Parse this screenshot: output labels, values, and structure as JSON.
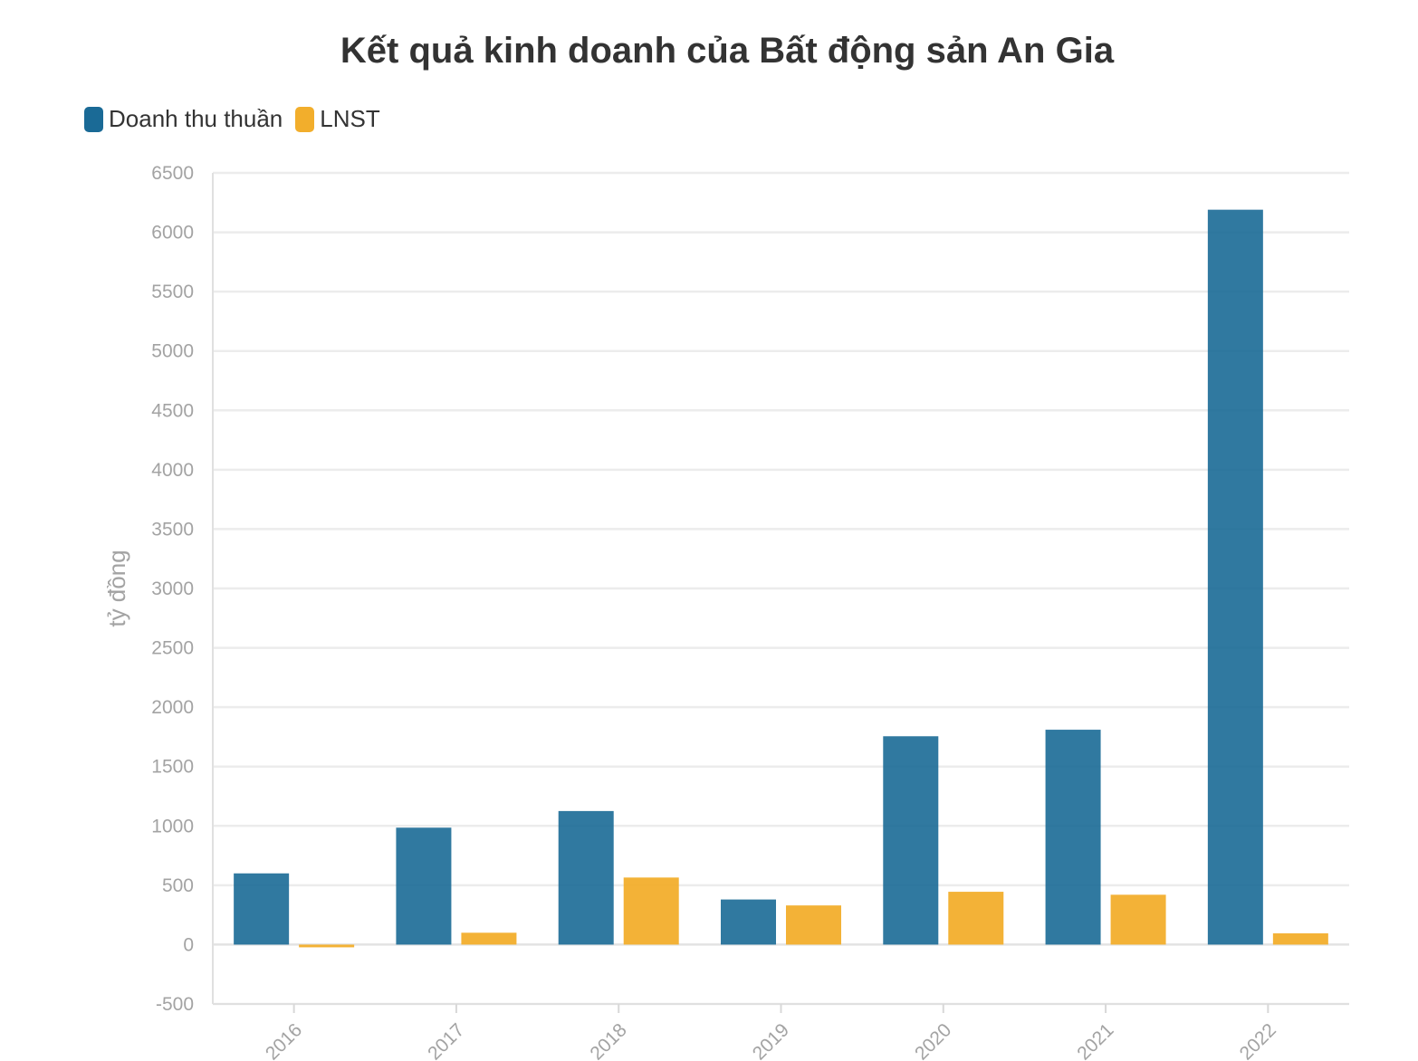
{
  "chart_data": {
    "type": "bar",
    "title": "Kết quả kinh doanh của Bất động sản An Gia",
    "ylabel": "tỷ đồng",
    "xlabel": "",
    "categories": [
      "2016",
      "2017",
      "2018",
      "2019",
      "2020",
      "2021",
      "2022"
    ],
    "series": [
      {
        "name": "Doanh thu thuần",
        "color": "#1a6a96",
        "values": [
          600,
          985,
          1125,
          380,
          1755,
          1810,
          6190
        ]
      },
      {
        "name": "LNST",
        "color": "#f2ae2c",
        "values": [
          -15,
          100,
          565,
          330,
          445,
          420,
          95
        ]
      }
    ],
    "ylim": [
      -500,
      6500
    ],
    "yticks": [
      -500,
      0,
      500,
      1000,
      1500,
      2000,
      2500,
      3000,
      3500,
      4000,
      4500,
      5000,
      5500,
      6000,
      6500
    ],
    "grid": true,
    "legend_position": "top-left"
  }
}
